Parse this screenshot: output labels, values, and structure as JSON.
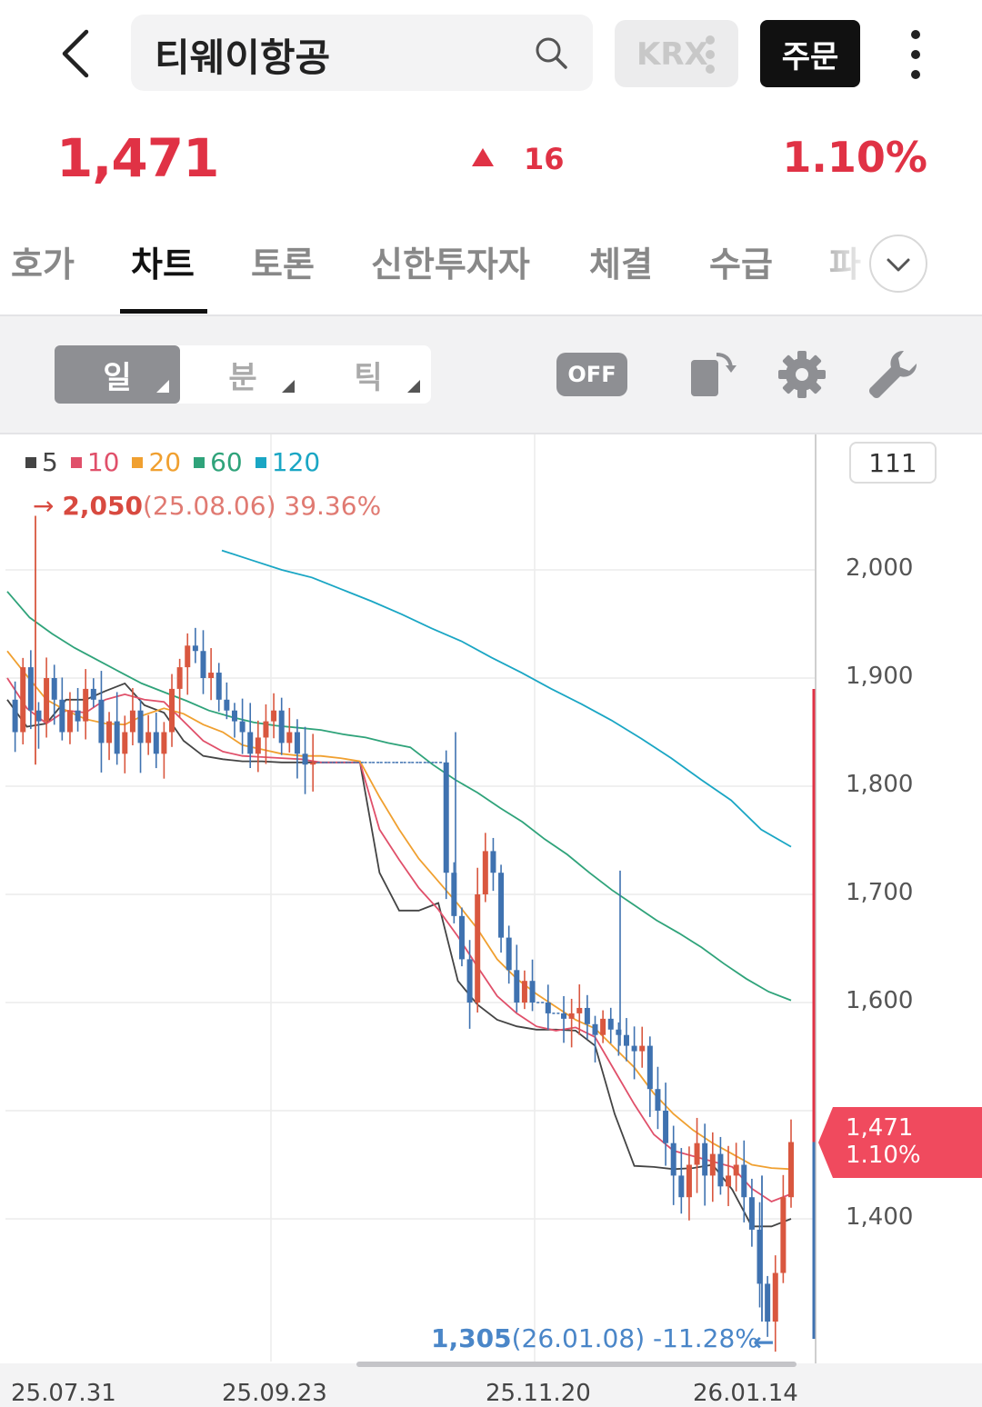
{
  "header": {
    "search_value": "티웨이항공",
    "exchange_label": "KRX",
    "order_label": "주문"
  },
  "quote": {
    "price": "1,471",
    "change": "16",
    "change_pct": "1.10%",
    "direction": "up",
    "up_color": "#e03245"
  },
  "tabs": [
    {
      "label": "호가",
      "active": false
    },
    {
      "label": "차트",
      "active": true
    },
    {
      "label": "토론",
      "active": false
    },
    {
      "label": "신한투자자",
      "active": false
    },
    {
      "label": "체결",
      "active": false
    },
    {
      "label": "수급",
      "active": false
    },
    {
      "label": "파",
      "active": false
    }
  ],
  "toolbar": {
    "periods": [
      {
        "label": "일",
        "active": true
      },
      {
        "label": "분",
        "active": false
      },
      {
        "label": "틱",
        "active": false
      }
    ],
    "toggle_label": "OFF"
  },
  "chart": {
    "candle_count": "111",
    "legend": [
      {
        "label": "5",
        "color": "#444444"
      },
      {
        "label": "10",
        "color": "#e0506a"
      },
      {
        "label": "20",
        "color": "#f0a030"
      },
      {
        "label": "60",
        "color": "#2fa37a"
      },
      {
        "label": "120",
        "color": "#1aa6c4"
      }
    ],
    "high": {
      "value": "2,050",
      "date": "(25.08.06)",
      "pct": "39.36%"
    },
    "low": {
      "value": "1,305",
      "date": "(26.01.08)",
      "pct": "-11.28%"
    },
    "current_tag": {
      "price": "1,471",
      "pct": "1.10%"
    },
    "y_ticks": [
      "2,000",
      "1,900",
      "1,800",
      "1,700",
      "1,600",
      "1,400"
    ],
    "x_ticks": [
      "25.07.31",
      "25.09.23",
      "25.11.20",
      "26.01.14"
    ]
  },
  "chart_data": {
    "type": "candlestick",
    "y_axis": {
      "ticks": [
        1400,
        1600,
        1700,
        1800,
        1900,
        2000
      ]
    },
    "x_ticks": [
      "25.07.31",
      "25.09.23",
      "25.11.20",
      "26.01.14"
    ],
    "series": [
      {
        "name": "5",
        "values": [
          1880,
          1855,
          1858,
          1880,
          1880,
          1888,
          1895,
          1875,
          1868,
          1842,
          1828,
          1825,
          1823,
          1823,
          1822,
          1822,
          1822,
          1822,
          1822,
          1720,
          1685,
          1685,
          1692,
          1620,
          1598,
          1584,
          1578,
          1575,
          1575,
          1574,
          1560,
          1497,
          1449,
          1448,
          1446,
          1447,
          1450,
          1427,
          1393,
          1393,
          1400
        ]
      },
      {
        "name": "10",
        "values": [
          1900,
          1872,
          1858,
          1870,
          1868,
          1880,
          1885,
          1880,
          1878,
          1860,
          1842,
          1832,
          1828,
          1827,
          1826,
          1825,
          1822,
          1822,
          1822,
          1760,
          1732,
          1706,
          1686,
          1661,
          1633,
          1606,
          1590,
          1578,
          1574,
          1577,
          1568,
          1537,
          1506,
          1478,
          1463,
          1458,
          1453,
          1448,
          1428,
          1416,
          1423
        ]
      },
      {
        "name": "20",
        "values": [
          1925,
          1902,
          1880,
          1870,
          1862,
          1858,
          1857,
          1866,
          1872,
          1867,
          1857,
          1850,
          1838,
          1834,
          1830,
          1828,
          1828,
          1826,
          1823,
          1790,
          1760,
          1733,
          1712,
          1691,
          1668,
          1640,
          1622,
          1608,
          1596,
          1584,
          1576,
          1558,
          1540,
          1516,
          1497,
          1482,
          1470,
          1460,
          1450,
          1447,
          1446
        ]
      },
      {
        "name": "60",
        "values": [
          1980,
          1956,
          1941,
          1928,
          1917,
          1906,
          1895,
          1887,
          1879,
          1870,
          1864,
          1859,
          1856,
          1854,
          1852,
          1848,
          1845,
          1840,
          1836,
          1820,
          1806,
          1794,
          1780,
          1767,
          1751,
          1737,
          1720,
          1704,
          1690,
          1676,
          1664,
          1651,
          1636,
          1622,
          1610,
          1602
        ]
      },
      {
        "name": "120",
        "values": [
          2018,
          2009,
          2000,
          1993,
          1982,
          1971,
          1959,
          1946,
          1934,
          1919,
          1905,
          1890,
          1876,
          1861,
          1844,
          1826,
          1806,
          1787,
          1760,
          1744
        ]
      }
    ],
    "high": {
      "price": 2050,
      "date": "25.08.06",
      "pct": 39.36
    },
    "low": {
      "price": 1305,
      "date": "26.01.08",
      "pct": -11.28
    },
    "last": {
      "price": 1471,
      "pct": 1.1
    }
  }
}
